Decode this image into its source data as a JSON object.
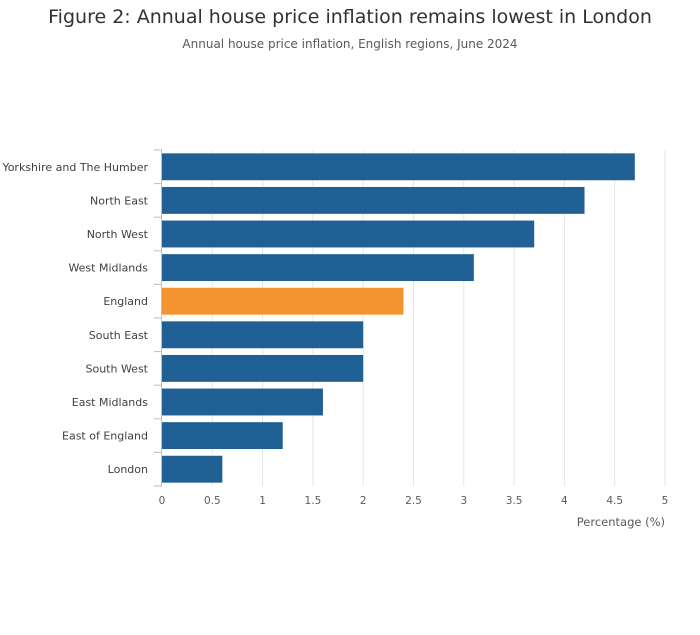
{
  "chart_data": {
    "type": "bar",
    "orientation": "horizontal",
    "title": "Figure 2: Annual house price inflation remains lowest in London",
    "subtitle": "Annual house price inflation, English regions, June 2024",
    "xlabel": "Percentage (%)",
    "categories": [
      "Yorkshire and The Humber",
      "North East",
      "North West",
      "West Midlands",
      "England",
      "South East",
      "South West",
      "East Midlands",
      "East of England",
      "London"
    ],
    "values": [
      4.7,
      4.2,
      3.7,
      3.1,
      2.4,
      2.0,
      2.0,
      1.6,
      1.2,
      0.6
    ],
    "xlim": [
      0,
      5
    ],
    "xticks": [
      "0",
      "0.5",
      "1",
      "1.5",
      "2",
      "2.5",
      "3",
      "3.5",
      "4",
      "4.5",
      "5"
    ],
    "grid": true,
    "highlight_category": "England",
    "colors": {
      "default": "#206095",
      "highlight": "#f39431",
      "grid": "#e6e6e6",
      "axis": "#bebebe"
    }
  }
}
